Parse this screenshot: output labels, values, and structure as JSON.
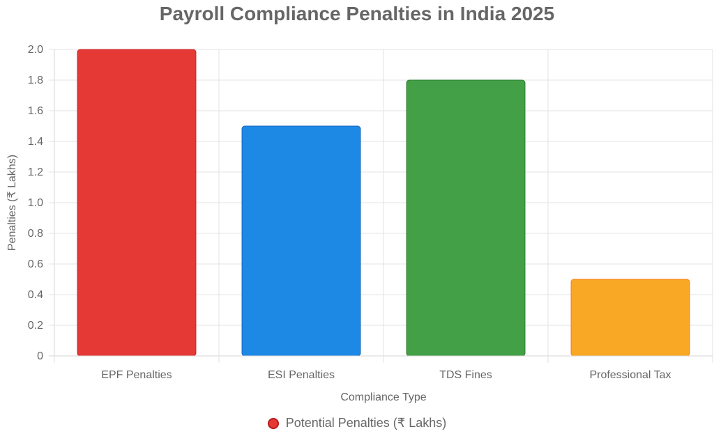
{
  "chart_data": {
    "type": "bar",
    "title": "Payroll Compliance Penalties in India 2025",
    "xlabel": "Compliance Type",
    "ylabel": "Penalties (₹ Lakhs)",
    "categories": [
      "EPF Penalties",
      "ESI Penalties",
      "TDS Fines",
      "Professional Tax"
    ],
    "series": [
      {
        "name": "Potential Penalties (₹ Lakhs)",
        "values": [
          2.0,
          1.5,
          1.8,
          0.5
        ],
        "colors": [
          "#e53935",
          "#1e88e5",
          "#43a047",
          "#f9a825"
        ],
        "border_colors": [
          "#c62828",
          "#1565c0",
          "#2e7d32",
          "#f57f17"
        ]
      }
    ],
    "ylim": [
      0,
      2.0
    ],
    "yticks": [
      "0",
      "0.2",
      "0.4",
      "0.6",
      "0.8",
      "1.0",
      "1.2",
      "1.4",
      "1.6",
      "1.8",
      "2.0"
    ],
    "grid": true,
    "legend_position": "bottom",
    "legend_swatch_color": "#e53935"
  }
}
